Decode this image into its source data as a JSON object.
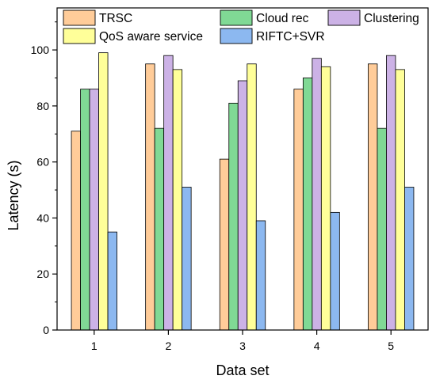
{
  "chart_data": {
    "type": "bar",
    "xlabel": "Data set",
    "ylabel": "Latency (s)",
    "categories": [
      "1",
      "2",
      "3",
      "4",
      "5"
    ],
    "ylim": [
      0,
      115
    ],
    "yticks": [
      0,
      20,
      40,
      60,
      80,
      100
    ],
    "minor_yticks": true,
    "grid": false,
    "legend_position": "top",
    "series": [
      {
        "name": "TRSC",
        "color": "#FFCC99",
        "values": [
          71,
          95,
          61,
          86,
          95
        ]
      },
      {
        "name": "Cloud rec",
        "color": "#80D995",
        "values": [
          86,
          72,
          81,
          90,
          72
        ]
      },
      {
        "name": "Clustering",
        "color": "#CCB2E6",
        "values": [
          86,
          98,
          89,
          97,
          98
        ]
      },
      {
        "name": "QoS aware service",
        "color": "#FFFF99",
        "values": [
          99,
          93,
          95,
          94,
          93
        ]
      },
      {
        "name": "RIFTC+SVR",
        "color": "#8CB8F0",
        "values": [
          35,
          51,
          39,
          42,
          51
        ]
      }
    ]
  }
}
